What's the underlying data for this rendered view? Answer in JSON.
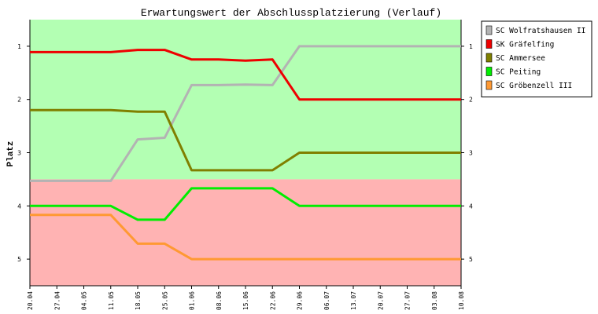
{
  "chart_data": {
    "type": "line",
    "title": "Erwartungswert der Abschlussplatzierung (Verlauf)",
    "xlabel": "",
    "ylabel": "Platz",
    "y_reversed": true,
    "ylim": [
      0.5,
      5.5
    ],
    "yticks": [
      "1",
      "2",
      "3",
      "4",
      "5"
    ],
    "x": [
      "20.04",
      "27.04",
      "04.05",
      "11.05",
      "18.05",
      "25.05",
      "01.06",
      "08.06",
      "15.06",
      "22.06",
      "29.06",
      "06.07",
      "13.07",
      "20.07",
      "27.07",
      "03.08",
      "10.08"
    ],
    "bands": [
      {
        "from": 0.5,
        "to": 3.5,
        "color": "#b3ffb3"
      },
      {
        "from": 3.5,
        "to": 5.5,
        "color": "#ffb3b3"
      }
    ],
    "grid": false,
    "legend_position": "right",
    "series": [
      {
        "name": "SC Wolfratshausen II",
        "color": "#b3b3b3",
        "values": [
          3.53,
          3.53,
          3.53,
          3.53,
          2.75,
          2.72,
          1.73,
          1.73,
          1.72,
          1.73,
          1.0,
          1.0,
          1.0,
          1.0,
          1.0,
          1.0,
          1.0
        ]
      },
      {
        "name": "SK Gräfelfing",
        "color": "#ee0000",
        "values": [
          1.11,
          1.11,
          1.11,
          1.11,
          1.07,
          1.07,
          1.25,
          1.25,
          1.27,
          1.25,
          2.0,
          2.0,
          2.0,
          2.0,
          2.0,
          2.0,
          2.0
        ]
      },
      {
        "name": "SC Ammersee",
        "color": "#808000",
        "values": [
          2.2,
          2.2,
          2.2,
          2.2,
          2.23,
          2.23,
          3.33,
          3.33,
          3.33,
          3.33,
          3.0,
          3.0,
          3.0,
          3.0,
          3.0,
          3.0,
          3.0
        ]
      },
      {
        "name": "SC Peiting",
        "color": "#00ee00",
        "values": [
          4.0,
          4.0,
          4.0,
          4.0,
          4.26,
          4.26,
          3.67,
          3.67,
          3.67,
          3.67,
          4.0,
          4.0,
          4.0,
          4.0,
          4.0,
          4.0,
          4.0
        ]
      },
      {
        "name": "SC Gröbenzell III",
        "color": "#ff9933",
        "values": [
          4.17,
          4.17,
          4.17,
          4.17,
          4.71,
          4.71,
          5.0,
          5.0,
          5.0,
          5.0,
          5.0,
          5.0,
          5.0,
          5.0,
          5.0,
          5.0,
          5.0
        ]
      }
    ]
  }
}
